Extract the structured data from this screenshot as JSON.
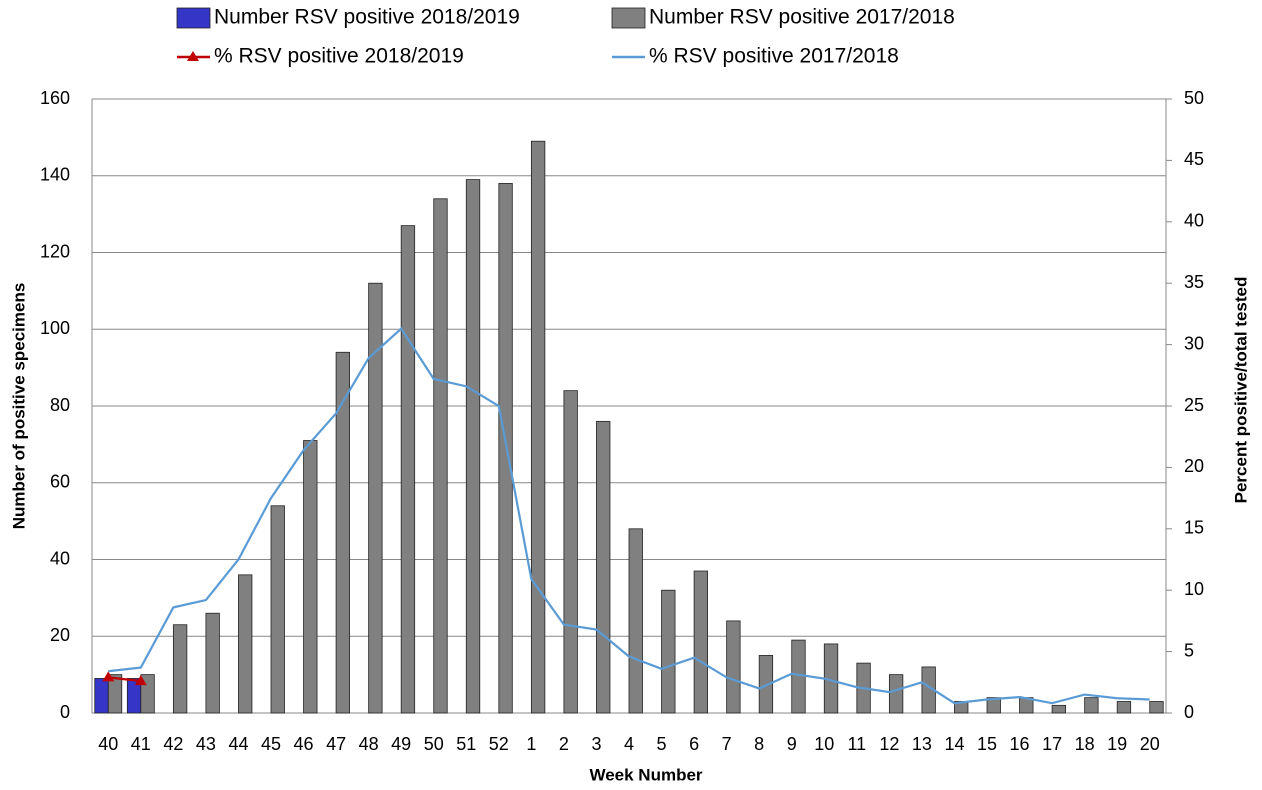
{
  "chart_data": {
    "type": "bar",
    "x_label": "Week Number",
    "y_label": "Number of positive specimens",
    "y2_label": "Percent positive/total tested",
    "categories": [
      "40",
      "41",
      "42",
      "43",
      "44",
      "45",
      "46",
      "47",
      "48",
      "49",
      "50",
      "51",
      "52",
      "1",
      "2",
      "3",
      "4",
      "5",
      "6",
      "7",
      "8",
      "9",
      "10",
      "11",
      "12",
      "13",
      "14",
      "15",
      "16",
      "17",
      "18",
      "19",
      "20"
    ],
    "series": [
      {
        "name": "Number RSV positive 2018/2019",
        "type": "bar",
        "color": "#3535c8",
        "values": [
          9,
          9,
          null,
          null,
          null,
          null,
          null,
          null,
          null,
          null,
          null,
          null,
          null,
          null,
          null,
          null,
          null,
          null,
          null,
          null,
          null,
          null,
          null,
          null,
          null,
          null,
          null,
          null,
          null,
          null,
          null,
          null,
          null
        ]
      },
      {
        "name": "Number RSV positive 2017/2018",
        "type": "bar",
        "color": "#808080",
        "values": [
          10,
          10,
          23,
          26,
          36,
          54,
          71,
          94,
          112,
          127,
          134,
          139,
          138,
          149,
          84,
          76,
          48,
          32,
          37,
          24,
          15,
          19,
          18,
          13,
          10,
          12,
          3,
          4,
          4,
          2,
          4,
          3,
          3
        ]
      },
      {
        "name": "% RSV positive 2018/2019",
        "type": "line",
        "axis": "y2",
        "color": "#c00000",
        "marker": "triangle",
        "values": [
          2.9,
          2.6,
          null,
          null,
          null,
          null,
          null,
          null,
          null,
          null,
          null,
          null,
          null,
          null,
          null,
          null,
          null,
          null,
          null,
          null,
          null,
          null,
          null,
          null,
          null,
          null,
          null,
          null,
          null,
          null,
          null,
          null,
          null
        ]
      },
      {
        "name": "% RSV positive 2017/2018",
        "type": "line",
        "axis": "y2",
        "color": "#5b9bd5",
        "values": [
          3.4,
          3.7,
          8.6,
          9.2,
          12.5,
          17.5,
          21.4,
          24.4,
          28.9,
          31.3,
          27.2,
          26.6,
          25,
          10.9,
          7.2,
          6.8,
          4.6,
          3.6,
          4.5,
          2.9,
          2,
          3.2,
          2.8,
          2.1,
          1.7,
          2.5,
          0.8,
          1.1,
          1.3,
          0.8,
          1.5,
          1.2,
          1.1
        ]
      }
    ],
    "ylim": [
      0,
      160
    ],
    "yticks": [
      0,
      20,
      40,
      60,
      80,
      100,
      120,
      140,
      160
    ],
    "y2lim": [
      0,
      50
    ],
    "y2ticks": [
      0,
      5,
      10,
      15,
      20,
      25,
      30,
      35,
      40,
      45,
      50
    ],
    "grid": true
  }
}
